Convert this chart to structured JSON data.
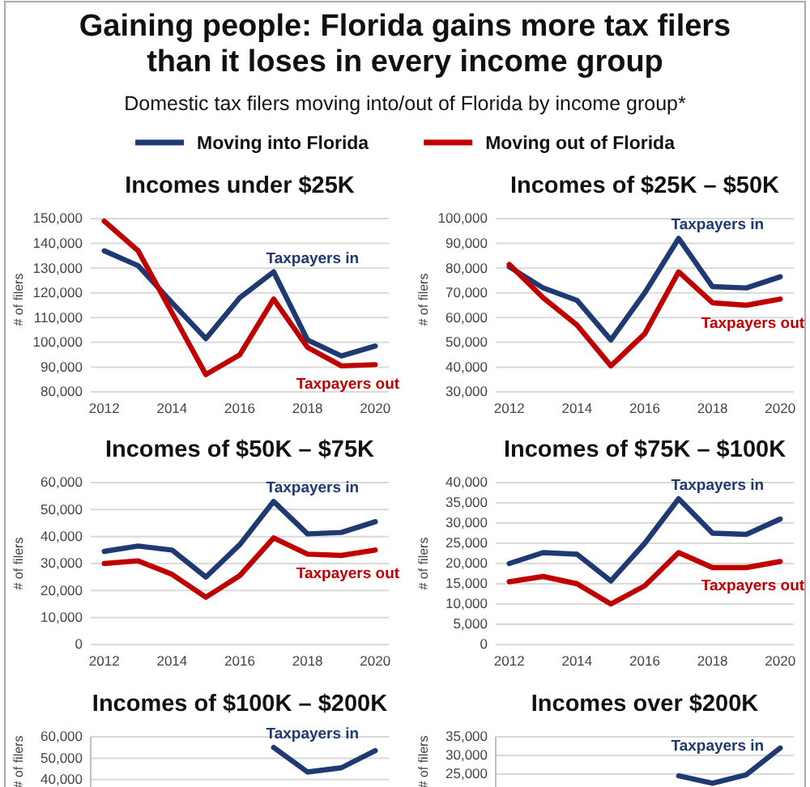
{
  "chart_data": [
    {
      "type": "other",
      "title": "Gaining people: Florida gains more tax filers than it loses in every income group",
      "subtitle": "Domestic tax filers moving into/out of Florida by income group*",
      "legend": "top",
      "series": [
        {
          "name": "Moving into Florida",
          "color": "#1f3a73"
        },
        {
          "name": "Moving out of Florida",
          "color": "#c00000"
        }
      ]
    },
    {
      "type": "line",
      "title": "Incomes under $25K",
      "ylabel": "# of filers",
      "x": [
        2012,
        2013,
        2014,
        2015,
        2016,
        2017,
        2018,
        2019,
        2020
      ],
      "xlim": [
        2011.6,
        2020.4
      ],
      "xticks": [
        2012,
        2014,
        2016,
        2018,
        2020
      ],
      "ylim": [
        80000,
        150000
      ],
      "yticks": [
        {
          "value": 80000,
          "label": "80,000"
        },
        {
          "value": 90000,
          "label": "90,000"
        },
        {
          "value": 100000,
          "label": "100,000"
        },
        {
          "value": 110000,
          "label": "110,000"
        },
        {
          "value": 120000,
          "label": "120,000"
        },
        {
          "value": 130000,
          "label": "130,000"
        },
        {
          "value": 140000,
          "label": "140,000"
        },
        {
          "value": 150000,
          "label": "150,000"
        }
      ],
      "grid": "y",
      "series": [
        {
          "color": "#1f3a73",
          "values": [
            137000,
            131000,
            116000,
            101500,
            118000,
            128500,
            101000,
            94500,
            98500
          ]
        },
        {
          "color": "#c00000",
          "values": [
            149000,
            137000,
            112000,
            87000,
            95000,
            117500,
            98000,
            90500,
            91000
          ]
        }
      ],
      "annotations": [
        "Taxpayers in",
        "Taxpayers out"
      ]
    },
    {
      "type": "line",
      "title": "Incomes of $25K – $50K",
      "ylabel": "# of filers",
      "x": [
        2012,
        2013,
        2014,
        2015,
        2016,
        2017,
        2018,
        2019,
        2020
      ],
      "xlim": [
        2011.6,
        2020.4
      ],
      "xticks": [
        2012,
        2014,
        2016,
        2018,
        2020
      ],
      "ylim": [
        30000,
        100000
      ],
      "yticks": [
        {
          "value": 30000,
          "label": "30,000"
        },
        {
          "value": 40000,
          "label": "40,000"
        },
        {
          "value": 50000,
          "label": "50,000"
        },
        {
          "value": 60000,
          "label": "60,000"
        },
        {
          "value": 70000,
          "label": "70,000"
        },
        {
          "value": 80000,
          "label": "80,000"
        },
        {
          "value": 90000,
          "label": "90,000"
        },
        {
          "value": 100000,
          "label": "100,000"
        }
      ],
      "grid": "y",
      "series": [
        {
          "color": "#1f3a73",
          "values": [
            80500,
            72000,
            67000,
            51000,
            70000,
            92000,
            72500,
            72000,
            76500
          ]
        },
        {
          "color": "#c00000",
          "values": [
            81500,
            68000,
            57000,
            40500,
            53500,
            78500,
            66000,
            65000,
            67500
          ]
        }
      ],
      "annotations": [
        "Taxpayers in",
        "Taxpayers out"
      ]
    },
    {
      "type": "line",
      "title": "Incomes of $50K – $75K",
      "ylabel": "# of filers",
      "x": [
        2012,
        2013,
        2014,
        2015,
        2016,
        2017,
        2018,
        2019,
        2020
      ],
      "xlim": [
        2011.6,
        2020.4
      ],
      "xticks": [
        2012,
        2014,
        2016,
        2018,
        2020
      ],
      "ylim": [
        0,
        60000
      ],
      "yticks": [
        0,
        {
          "value": 10000,
          "label": "10,000"
        },
        {
          "value": 20000,
          "label": "20,000"
        },
        {
          "value": 30000,
          "label": "30,000"
        },
        {
          "value": 40000,
          "label": "40,000"
        },
        {
          "value": 50000,
          "label": "50,000"
        },
        {
          "value": 60000,
          "label": "60,000"
        }
      ],
      "grid": "y",
      "series": [
        {
          "color": "#1f3a73",
          "values": [
            34500,
            36500,
            35000,
            25000,
            37000,
            53000,
            41000,
            41500,
            45500
          ]
        },
        {
          "color": "#c00000",
          "values": [
            30000,
            31000,
            26000,
            17500,
            25500,
            39500,
            33500,
            33000,
            35000
          ]
        }
      ],
      "annotations": [
        "Taxpayers in",
        "Taxpayers out"
      ]
    },
    {
      "type": "line",
      "title": "Incomes of $75K – $100K",
      "ylabel": "# of filers",
      "x": [
        2012,
        2013,
        2014,
        2015,
        2016,
        2017,
        2018,
        2019,
        2020
      ],
      "xlim": [
        2011.6,
        2020.4
      ],
      "xticks": [
        2012,
        2014,
        2016,
        2018,
        2020
      ],
      "ylim": [
        0,
        40000
      ],
      "yticks": [
        0,
        {
          "value": 5000,
          "label": "5,000"
        },
        {
          "value": 10000,
          "label": "10,000"
        },
        {
          "value": 15000,
          "label": "15,000"
        },
        {
          "value": 20000,
          "label": "20,000"
        },
        {
          "value": 25000,
          "label": "25,000"
        },
        {
          "value": 30000,
          "label": "30,000"
        },
        {
          "value": 35000,
          "label": "35,000"
        },
        {
          "value": 40000,
          "label": "40,000"
        }
      ],
      "grid": "y",
      "series": [
        {
          "color": "#1f3a73",
          "values": [
            20000,
            22700,
            22300,
            15700,
            25000,
            36000,
            27500,
            27200,
            31000
          ]
        },
        {
          "color": "#c00000",
          "values": [
            15500,
            16800,
            15000,
            10000,
            14500,
            22700,
            19000,
            19000,
            20500
          ]
        }
      ],
      "annotations": [
        "Taxpayers in",
        "Taxpayers out"
      ]
    },
    {
      "type": "line",
      "title": "Incomes of $100K – $200K",
      "ylabel": "# of filers",
      "tick_labels": "y",
      "categories": [
        null,
        null,
        null,
        null,
        null,
        null,
        null,
        null,
        null
      ],
      "ylim": [
        36500,
        60000
      ],
      "yticks": [
        {
          "value": 40000,
          "label": "40,000"
        },
        {
          "value": 50000,
          "label": "50,000"
        },
        {
          "value": 60000,
          "label": "60,000"
        }
      ],
      "grid": "y",
      "series": [
        {
          "color": "#1f3a73",
          "values": [
            null,
            null,
            null,
            null,
            null,
            55000,
            43500,
            45500,
            53500
          ]
        }
      ],
      "annotations": [
        "Taxpayers in"
      ]
    },
    {
      "type": "line",
      "title": "Incomes over $200K",
      "ylabel": "# of filers",
      "tick_labels": "y",
      "categories": [
        null,
        null,
        null,
        null,
        null,
        null,
        null,
        null,
        null
      ],
      "ylim": [
        21500,
        35000
      ],
      "yticks": [
        {
          "value": 25000,
          "label": "25,000"
        },
        {
          "value": 30000,
          "label": "30,000"
        },
        {
          "value": 35000,
          "label": "35,000"
        }
      ],
      "grid": "y",
      "series": [
        {
          "color": "#1f3a73",
          "values": [
            null,
            null,
            null,
            null,
            null,
            24500,
            22500,
            24800,
            32000
          ]
        }
      ],
      "annotations": [
        "Taxpayers in"
      ]
    }
  ]
}
